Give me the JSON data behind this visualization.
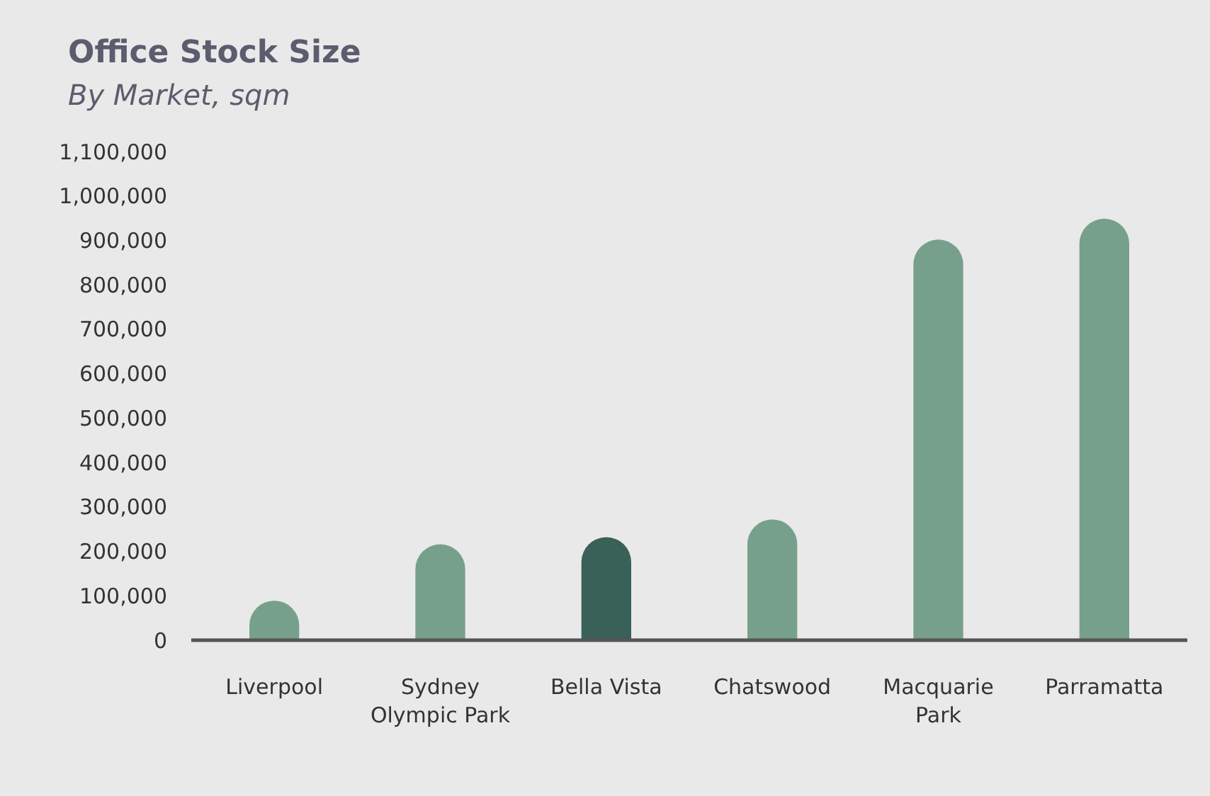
{
  "chart_data": {
    "type": "bar",
    "title": "Office Stock Size",
    "subtitle": "By Market, sqm",
    "categories": [
      "Liverpool",
      "Sydney Olympic Park",
      "Bella Vista",
      "Chatswood",
      "Macquarie Park",
      "Parramatta"
    ],
    "values": [
      89000,
      216000,
      232000,
      272000,
      902000,
      949000
    ],
    "colors": [
      "#76a08b",
      "#76a08b",
      "#3a6157",
      "#76a08b",
      "#76a08b",
      "#76a08b"
    ],
    "ylim": [
      0,
      1100000
    ],
    "yticks": [
      {
        "value": 0,
        "label": "0"
      },
      {
        "value": 100000,
        "label": "100,000"
      },
      {
        "value": 200000,
        "label": "200,000"
      },
      {
        "value": 300000,
        "label": "300,000"
      },
      {
        "value": 400000,
        "label": "400,000"
      },
      {
        "value": 500000,
        "label": "500,000"
      },
      {
        "value": 600000,
        "label": "600,000"
      },
      {
        "value": 700000,
        "label": "700,000"
      },
      {
        "value": 800000,
        "label": "800,000"
      },
      {
        "value": 900000,
        "label": "900,000"
      },
      {
        "value": 1000000,
        "label": "1,000,000"
      },
      {
        "value": 1100000,
        "label": "1,100,000"
      }
    ],
    "grid": false
  }
}
